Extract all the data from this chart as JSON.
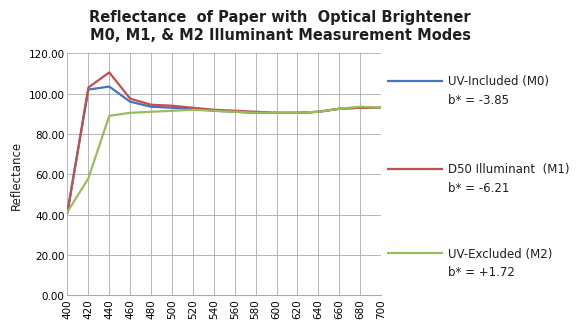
{
  "title_line1": "Reflectance  of Paper with  Optical Brightener",
  "title_line2": "M0, M1, & M2 Illuminant Measurement Modes",
  "xlabel": "",
  "ylabel": "Reflectance",
  "xlim": [
    400,
    700
  ],
  "ylim": [
    0,
    120
  ],
  "yticks": [
    0,
    20,
    40,
    60,
    80,
    100,
    120
  ],
  "xticks": [
    400,
    420,
    440,
    460,
    480,
    500,
    520,
    540,
    560,
    580,
    600,
    620,
    640,
    660,
    680,
    700
  ],
  "wavelengths": [
    400,
    420,
    440,
    460,
    480,
    500,
    520,
    540,
    560,
    580,
    600,
    620,
    640,
    660,
    680,
    700
  ],
  "M0": [
    41.5,
    102.0,
    103.5,
    96.0,
    93.5,
    93.0,
    92.5,
    91.5,
    91.0,
    90.5,
    90.5,
    90.5,
    91.0,
    92.5,
    93.0,
    93.0
  ],
  "M1": [
    41.0,
    103.0,
    110.5,
    97.5,
    94.5,
    94.0,
    93.0,
    92.0,
    91.5,
    91.0,
    90.5,
    90.5,
    91.0,
    92.5,
    93.0,
    93.0
  ],
  "M2": [
    41.5,
    58.0,
    89.0,
    90.5,
    91.0,
    91.5,
    92.0,
    91.5,
    91.0,
    90.5,
    90.5,
    90.5,
    91.0,
    92.5,
    93.5,
    93.0
  ],
  "M0_color": "#4472C4",
  "M1_color": "#C0504D",
  "M2_color": "#9BBB59",
  "M0_label1": "UV-Included (M0)",
  "M0_label2": "b* = -3.85",
  "M1_label1": "D50 Illuminant  (M1)",
  "M1_label2": "b* = -6.21",
  "M2_label1": "UV-Excluded (M2)",
  "M2_label2": "b* = +1.72",
  "background_color": "#ffffff",
  "grid_color": "#aaaaaa",
  "title_color": "#1f1f1f",
  "title_fontsize": 10.5,
  "axis_label_fontsize": 8.5,
  "tick_fontsize": 7.5,
  "legend_fontsize": 8.5,
  "line_width": 1.6
}
